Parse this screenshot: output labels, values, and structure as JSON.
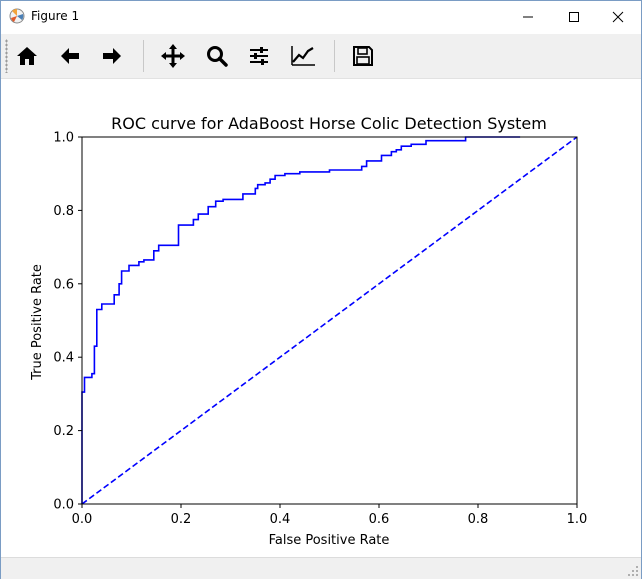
{
  "window": {
    "title": "Figure 1",
    "minimize_symbol": "—",
    "maximize_symbol": "☐",
    "close_symbol": "✕"
  },
  "toolbar": {
    "buttons": [
      {
        "name": "home-icon",
        "tooltip": "Reset original view"
      },
      {
        "name": "back-arrow-icon",
        "tooltip": "Back to previous view"
      },
      {
        "name": "forward-arrow-icon",
        "tooltip": "Forward to next view"
      },
      {
        "name": "pan-move-icon",
        "tooltip": "Pan axes"
      },
      {
        "name": "zoom-magnifier-icon",
        "tooltip": "Zoom to rectangle"
      },
      {
        "name": "subplots-config-icon",
        "tooltip": "Configure subplots"
      },
      {
        "name": "edit-axes-icon",
        "tooltip": "Edit axis, curve and image parameters"
      },
      {
        "name": "save-floppy-icon",
        "tooltip": "Save the figure"
      }
    ]
  },
  "colors": {
    "curve": "#0000ff",
    "diagonal": "#0000ff",
    "axes": "#000000",
    "toolbar_bg": "#f0f0f0"
  },
  "chart_data": {
    "type": "line",
    "title": "ROC curve for AdaBoost Horse Colic Detection System",
    "xlabel": "False Positive Rate",
    "ylabel": "True Positive Rate",
    "xlim": [
      0,
      1
    ],
    "ylim": [
      0,
      1
    ],
    "xticks": [
      "0.0",
      "0.2",
      "0.4",
      "0.6",
      "0.8",
      "1.0"
    ],
    "yticks": [
      "0.0",
      "0.2",
      "0.4",
      "0.6",
      "0.8",
      "1.0"
    ],
    "grid": false,
    "legend": "none",
    "series": [
      {
        "style": "solid",
        "color": "#0000ff",
        "x": [
          0.0,
          0.0,
          0.005,
          0.005,
          0.02,
          0.02,
          0.025,
          0.025,
          0.03,
          0.03,
          0.04,
          0.04,
          0.065,
          0.065,
          0.075,
          0.075,
          0.08,
          0.08,
          0.095,
          0.095,
          0.115,
          0.115,
          0.125,
          0.125,
          0.145,
          0.145,
          0.155,
          0.155,
          0.195,
          0.195,
          0.225,
          0.225,
          0.235,
          0.235,
          0.255,
          0.255,
          0.27,
          0.27,
          0.285,
          0.285,
          0.325,
          0.325,
          0.35,
          0.35,
          0.355,
          0.355,
          0.37,
          0.37,
          0.38,
          0.38,
          0.39,
          0.39,
          0.41,
          0.41,
          0.44,
          0.44,
          0.5,
          0.5,
          0.565,
          0.565,
          0.575,
          0.575,
          0.605,
          0.605,
          0.625,
          0.625,
          0.635,
          0.635,
          0.645,
          0.645,
          0.665,
          0.665,
          0.695,
          0.695,
          0.775,
          0.775,
          0.885
        ],
        "y": [
          0.0,
          0.305,
          0.305,
          0.345,
          0.345,
          0.355,
          0.355,
          0.43,
          0.43,
          0.53,
          0.53,
          0.545,
          0.545,
          0.57,
          0.57,
          0.6,
          0.6,
          0.635,
          0.635,
          0.65,
          0.65,
          0.66,
          0.66,
          0.665,
          0.665,
          0.69,
          0.69,
          0.705,
          0.705,
          0.76,
          0.76,
          0.775,
          0.775,
          0.79,
          0.79,
          0.81,
          0.81,
          0.825,
          0.825,
          0.83,
          0.83,
          0.845,
          0.845,
          0.86,
          0.86,
          0.87,
          0.87,
          0.875,
          0.875,
          0.885,
          0.885,
          0.895,
          0.895,
          0.9,
          0.9,
          0.905,
          0.905,
          0.91,
          0.91,
          0.92,
          0.92,
          0.935,
          0.935,
          0.95,
          0.95,
          0.96,
          0.96,
          0.965,
          0.965,
          0.975,
          0.975,
          0.98,
          0.98,
          0.99,
          0.99,
          1.0,
          1.0
        ]
      },
      {
        "style": "dashed",
        "color": "#0000ff",
        "x": [
          0,
          1
        ],
        "y": [
          0,
          1
        ]
      }
    ]
  }
}
